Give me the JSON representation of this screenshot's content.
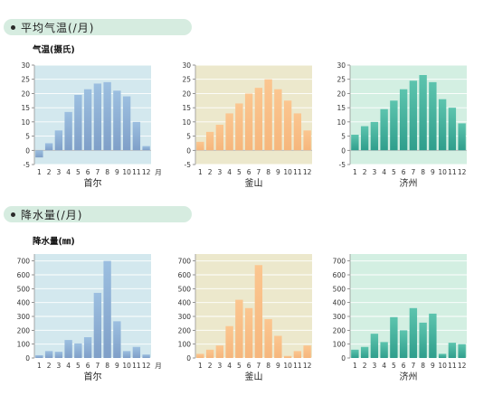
{
  "sections": {
    "temperature_title": "平均气温(/月)",
    "temperature_unit": "气温(摄氏)",
    "precipitation_title": "降水量(/月)",
    "precipitation_unit": "降水量(㎜)"
  },
  "month_suffix": "月",
  "colors": {
    "pill": "#d6ece0",
    "seoul_bg": "#d3e8ee",
    "seoul_bar_top": "#9cbfe0",
    "seoul_bar_bottom": "#7f9fc8",
    "busan_bg": "#ece8cc",
    "busan_bar_top": "#fbc690",
    "busan_bar_bottom": "#f6b67c",
    "jeju_bg": "#d3efe2",
    "jeju_bar_top": "#5dc4ae",
    "jeju_bar_bottom": "#2f9e8c"
  },
  "chart_data": [
    {
      "type": "bar",
      "id": "seoul-temp",
      "categories": [
        "1",
        "2",
        "3",
        "4",
        "5",
        "6",
        "7",
        "8",
        "9",
        "10",
        "11",
        "12"
      ],
      "values": [
        -2.5,
        2.5,
        7,
        13.5,
        19.5,
        21.5,
        23.5,
        24,
        21,
        19,
        10,
        1.5
      ],
      "xlabel": "首尔",
      "ylim": [
        -5,
        30
      ],
      "yticks": [
        "30",
        "25",
        "20",
        "15",
        "10",
        "5",
        "0",
        "-5"
      ],
      "show_month_suffix": true
    },
    {
      "type": "bar",
      "id": "busan-temp",
      "categories": [
        "1",
        "2",
        "3",
        "4",
        "5",
        "6",
        "7",
        "8",
        "9",
        "10",
        "11",
        "12"
      ],
      "values": [
        3,
        6.5,
        9,
        13,
        16.5,
        20,
        22,
        25,
        21.5,
        17.5,
        13,
        7
      ],
      "xlabel": "釜山",
      "ylim": [
        -5,
        30
      ],
      "yticks": [
        "30",
        "25",
        "20",
        "15",
        "10",
        "5",
        "0",
        "-5"
      ],
      "show_month_suffix": false
    },
    {
      "type": "bar",
      "id": "jeju-temp",
      "categories": [
        "1",
        "2",
        "3",
        "4",
        "5",
        "6",
        "7",
        "8",
        "9",
        "10",
        "11",
        "12"
      ],
      "values": [
        5.5,
        8.5,
        10,
        14.5,
        17.5,
        21.5,
        24.5,
        26.5,
        24,
        18,
        15,
        9.5
      ],
      "xlabel": "济州",
      "ylim": [
        -5,
        30
      ],
      "yticks": [
        "30",
        "25",
        "20",
        "15",
        "10",
        "5",
        "0",
        "-5"
      ],
      "show_month_suffix": false
    },
    {
      "type": "bar",
      "id": "seoul-precip",
      "categories": [
        "1",
        "2",
        "3",
        "4",
        "5",
        "6",
        "7",
        "8",
        "9",
        "10",
        "11",
        "12"
      ],
      "values": [
        20,
        50,
        45,
        130,
        105,
        150,
        470,
        700,
        265,
        50,
        80,
        25
      ],
      "xlabel": "首尔",
      "ylim": [
        0,
        750
      ],
      "yticks": [
        "700",
        "600",
        "500",
        "400",
        "300",
        "200",
        "100",
        "0"
      ],
      "show_month_suffix": true
    },
    {
      "type": "bar",
      "id": "busan-precip",
      "categories": [
        "1",
        "2",
        "3",
        "4",
        "5",
        "6",
        "7",
        "8",
        "9",
        "10",
        "11",
        "12"
      ],
      "values": [
        30,
        60,
        90,
        230,
        420,
        360,
        670,
        280,
        160,
        15,
        50,
        90
      ],
      "xlabel": "釜山",
      "ylim": [
        0,
        750
      ],
      "yticks": [
        "700",
        "600",
        "500",
        "400",
        "300",
        "200",
        "100",
        "0"
      ],
      "show_month_suffix": false
    },
    {
      "type": "bar",
      "id": "jeju-precip",
      "categories": [
        "1",
        "2",
        "3",
        "4",
        "5",
        "6",
        "7",
        "8",
        "9",
        "10",
        "11",
        "12"
      ],
      "values": [
        60,
        80,
        175,
        115,
        295,
        200,
        360,
        255,
        320,
        30,
        110,
        100
      ],
      "xlabel": "济州",
      "ylim": [
        0,
        750
      ],
      "yticks": [
        "700",
        "600",
        "500",
        "400",
        "300",
        "200",
        "100",
        "0"
      ],
      "show_month_suffix": false
    }
  ]
}
